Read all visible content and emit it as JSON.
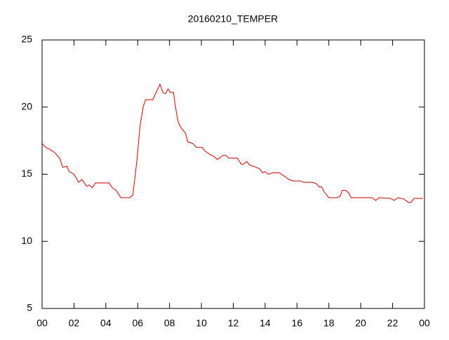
{
  "chart_data": {
    "type": "line",
    "title": "20160210_TEMPER",
    "color": "#cc0000",
    "x": [
      0,
      0.22,
      0.5,
      0.8,
      1.1,
      1.3,
      1.55,
      1.7,
      2.0,
      2.3,
      2.5,
      2.8,
      2.95,
      3.15,
      3.35,
      4.2,
      4.4,
      4.65,
      4.95,
      5.5,
      5.7,
      5.95,
      6.15,
      6.35,
      6.5,
      6.95,
      7.2,
      7.4,
      7.6,
      7.75,
      7.9,
      8.05,
      8.25,
      8.35,
      8.55,
      8.7,
      9.0,
      9.15,
      9.45,
      9.7,
      10.05,
      10.2,
      10.5,
      10.8,
      11.0,
      11.35,
      11.55,
      11.7,
      12.25,
      12.5,
      12.65,
      12.85,
      13.0,
      13.35,
      13.65,
      13.85,
      14.0,
      14.2,
      14.45,
      14.9,
      15.15,
      15.5,
      15.75,
      16.2,
      16.4,
      16.95,
      17.2,
      17.4,
      17.55,
      17.7,
      18.0,
      18.5,
      18.7,
      18.85,
      19.05,
      19.25,
      19.4,
      20.7,
      20.95,
      21.15,
      21.85,
      22.1,
      22.35,
      22.7,
      23.0,
      23.15,
      23.35,
      23.9
    ],
    "values": [
      17.3,
      17.0,
      16.85,
      16.6,
      16.2,
      15.5,
      15.6,
      15.2,
      15.0,
      14.4,
      14.6,
      14.1,
      14.2,
      14.0,
      14.35,
      14.35,
      14.0,
      13.8,
      13.25,
      13.25,
      13.45,
      16.0,
      18.6,
      20.05,
      20.55,
      20.55,
      21.2,
      21.7,
      21.05,
      21.0,
      21.35,
      21.1,
      21.1,
      20.15,
      18.85,
      18.5,
      18.05,
      17.4,
      17.3,
      17.0,
      17.0,
      16.75,
      16.5,
      16.3,
      16.1,
      16.4,
      16.4,
      16.2,
      16.2,
      15.75,
      15.75,
      15.95,
      15.7,
      15.55,
      15.4,
      15.1,
      15.2,
      15.0,
      15.1,
      15.1,
      14.9,
      14.6,
      14.5,
      14.5,
      14.4,
      14.4,
      14.3,
      14.05,
      14.05,
      13.7,
      13.25,
      13.25,
      13.35,
      13.8,
      13.8,
      13.6,
      13.25,
      13.25,
      13.05,
      13.25,
      13.2,
      13.05,
      13.25,
      13.15,
      12.9,
      12.9,
      13.2,
      13.2
    ],
    "xlim": [
      0,
      24
    ],
    "xticks": [
      {
        "value": 0,
        "label": "00"
      },
      {
        "value": 2,
        "label": "02"
      },
      {
        "value": 4,
        "label": "04"
      },
      {
        "value": 6,
        "label": "06"
      },
      {
        "value": 8,
        "label": "08"
      },
      10,
      12,
      14,
      16,
      18,
      20,
      22,
      {
        "value": 24,
        "label": "00"
      }
    ],
    "ylim": [
      5,
      25
    ],
    "yticks": [
      5,
      10,
      15,
      20,
      25
    ],
    "grid": false
  }
}
